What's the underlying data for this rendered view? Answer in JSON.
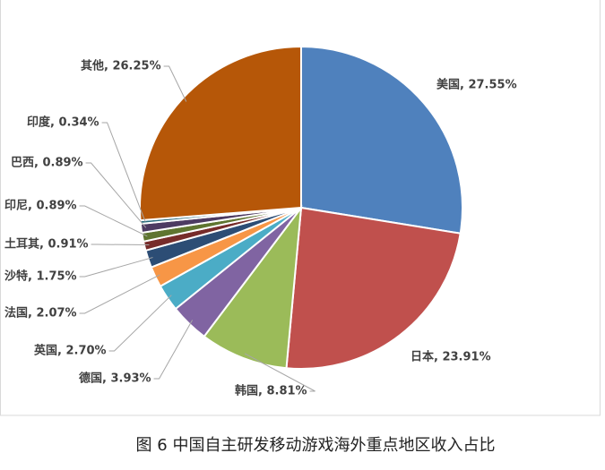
{
  "chart_data": {
    "type": "pie",
    "caption": "图 6 中国自主研发移动游戏海外重点地区收入占比",
    "categories": [
      "美国",
      "日本",
      "韩国",
      "德国",
      "英国",
      "法国",
      "沙特",
      "土耳其",
      "印尼",
      "巴西",
      "印度",
      "其他"
    ],
    "values": [
      27.55,
      23.91,
      8.81,
      3.93,
      2.7,
      2.07,
      1.75,
      0.91,
      0.89,
      0.89,
      0.34,
      26.25
    ],
    "value_labels": [
      "美国, 27.55%",
      "日本, 23.91%",
      "韩国, 8.81%",
      "德国, 3.93%",
      "英国, 2.70%",
      "法国, 2.07%",
      "沙特, 1.75%",
      "土耳其, 0.91%",
      "印尼, 0.89%",
      "巴西, 0.89%",
      "印度, 0.34%",
      "其他, 26.25%"
    ],
    "colors": [
      "#4f81bd",
      "#c0504d",
      "#9bbb59",
      "#8064a2",
      "#4bacc6",
      "#f79646",
      "#2c4d75",
      "#772c2a",
      "#5f7530",
      "#4d3b62",
      "#276a7c",
      "#b65708"
    ]
  }
}
